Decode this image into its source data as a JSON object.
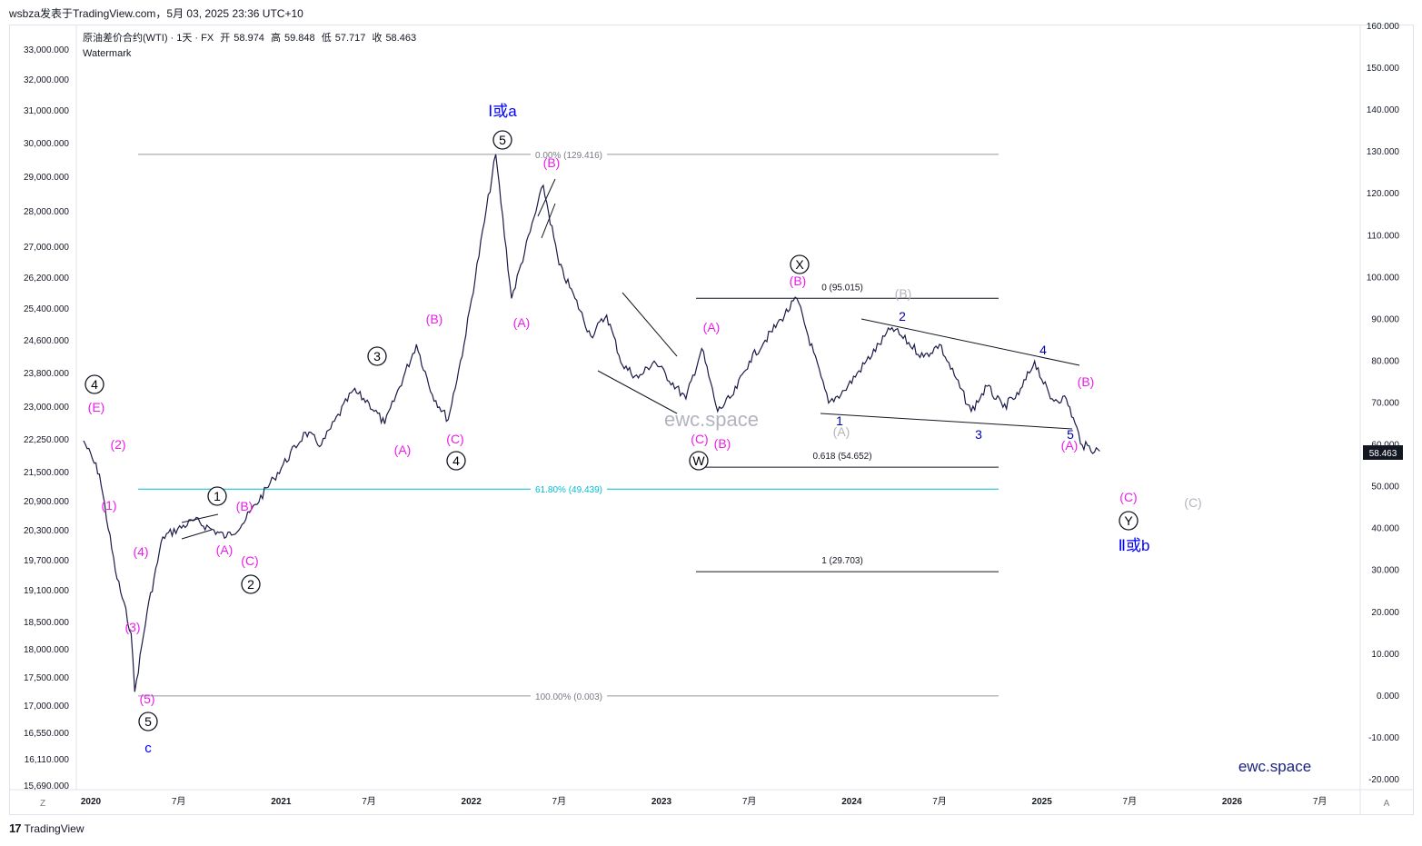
{
  "header": {
    "publisher_line": "wsbza发表于TradingView.com，5月 03, 2025 23:36 UTC+10"
  },
  "legend": {
    "symbol": "原油差价合约(WTI) · 1天 · FX",
    "open_label": "开",
    "open_value": "58.974",
    "high_label": "高",
    "high_value": "59.848",
    "low_label": "低",
    "low_value": "57.717",
    "close_label": "收",
    "close_value": "58.463",
    "watermark": "Watermark"
  },
  "footer": {
    "brand": "TradingView"
  },
  "corner": {
    "left": "Z",
    "right": "A"
  },
  "chart_data": {
    "type": "line",
    "title": "原油差价合约(WTI) · 1天 · FX",
    "right_axis": {
      "ticks": [
        "160.000",
        "150.000",
        "140.000",
        "130.000",
        "120.000",
        "110.000",
        "100.000",
        "90.000",
        "80.000",
        "70.000",
        "60.000",
        "50.000",
        "40.000",
        "30.000",
        "20.000",
        "10.000",
        "0.000",
        "-10.000",
        "-20.000"
      ],
      "range": [
        -20,
        160
      ]
    },
    "left_axis": {
      "ticks": [
        "33,000.000",
        "32,000.000",
        "31,000.000",
        "30,000.000",
        "29,000.000",
        "28,000.000",
        "27,000.000",
        "26,200.000",
        "25,400.000",
        "24,600.000",
        "23,800.000",
        "23,000.000",
        "22,250.000",
        "21,500.000",
        "20,900.000",
        "20,300.000",
        "19,700.000",
        "19,100.000",
        "18,500.000",
        "18,000.000",
        "17,500.000",
        "17,000.000",
        "16,550.000",
        "16,110.000",
        "15,690.000"
      ]
    },
    "x_axis": {
      "ticks": [
        "2020",
        "7月",
        "2021",
        "7月",
        "2022",
        "7月",
        "2023",
        "7月",
        "2024",
        "7月",
        "2025",
        "7月",
        "2026",
        "7月"
      ]
    },
    "last_price": "58.463",
    "series": [
      {
        "x": [
          "2020-01",
          "2020-02",
          "2020-03",
          "2020-04",
          "2020-04",
          "2020-05",
          "2020-06",
          "2020-08",
          "2020-09",
          "2020-10",
          "2020-11",
          "2021-01",
          "2021-03",
          "2021-04",
          "2021-06",
          "2021-07",
          "2021-08",
          "2021-10",
          "2021-11",
          "2021-12",
          "2022-01",
          "2022-03",
          "2022-04",
          "2022-06",
          "2022-07",
          "2022-08",
          "2022-09",
          "2022-10",
          "2022-11",
          "2022-12",
          "2023-01",
          "2023-03",
          "2023-04",
          "2023-05",
          "2023-06",
          "2023-07",
          "2023-08",
          "2023-09",
          "2023-10",
          "2023-12",
          "2024-01",
          "2024-04",
          "2024-06",
          "2024-07",
          "2024-09",
          "2024-10",
          "2024-11",
          "2024-12",
          "2025-01",
          "2025-02",
          "2025-03",
          "2025-04",
          "2025-05"
        ],
        "y": [
          61,
          53,
          30,
          15,
          1,
          20,
          38,
          42,
          40,
          38,
          41,
          52,
          63,
          60,
          73,
          70,
          65,
          84,
          72,
          66,
          84,
          129.4,
          95,
          122,
          103,
          95,
          86,
          91,
          79,
          76,
          80,
          71,
          83,
          68,
          72,
          80,
          85,
          90,
          95,
          70,
          73,
          88,
          81,
          84,
          68,
          74,
          69,
          72,
          80,
          71,
          71,
          60,
          58.5
        ]
      }
    ],
    "fibonacci_levels": [
      {
        "label": "0.00% (129.416)",
        "value": 129.416
      },
      {
        "label": "61.80% (49.439)",
        "value": 49.439
      },
      {
        "label": "100.00% (0.003)",
        "value": 0.003
      },
      {
        "label": "0 (95.015)",
        "value": 95.015
      },
      {
        "label": "0.618 (54.652)",
        "value": 54.652
      },
      {
        "label": "1 (29.703)",
        "value": 29.703
      }
    ],
    "wave_labels": [
      {
        "text": "Ⅰ或a",
        "color": "#0000ff"
      },
      {
        "text": "Ⅱ或b",
        "color": "#0000ff"
      },
      {
        "text": "c",
        "color": "#0000ff"
      },
      {
        "text": "5",
        "color": "#000000"
      },
      {
        "text": "4",
        "color": "#000000"
      },
      {
        "text": "3",
        "color": "#000000"
      },
      {
        "text": "2",
        "color": "#000000"
      },
      {
        "text": "1",
        "color": "#000000"
      },
      {
        "text": "W",
        "color": "#000000"
      },
      {
        "text": "X",
        "color": "#000000"
      },
      {
        "text": "Y",
        "color": "#000000"
      },
      {
        "text": "(A)",
        "color": "#e91ee9"
      },
      {
        "text": "(B)",
        "color": "#e91ee9"
      },
      {
        "text": "(C)",
        "color": "#e91ee9"
      },
      {
        "text": "(E)",
        "color": "#e91ee9"
      },
      {
        "text": "(1)",
        "color": "#e91ee9"
      },
      {
        "text": "(2)",
        "color": "#e91ee9"
      },
      {
        "text": "(3)",
        "color": "#e91ee9"
      },
      {
        "text": "(4)",
        "color": "#e91ee9"
      },
      {
        "text": "(5)",
        "color": "#e91ee9"
      },
      {
        "text": "(A)",
        "color": "#b2b5be"
      },
      {
        "text": "(B)",
        "color": "#b2b5be"
      },
      {
        "text": "(C)",
        "color": "#b2b5be"
      }
    ],
    "watermarks": [
      "ewc.space",
      "ewc.space"
    ]
  }
}
